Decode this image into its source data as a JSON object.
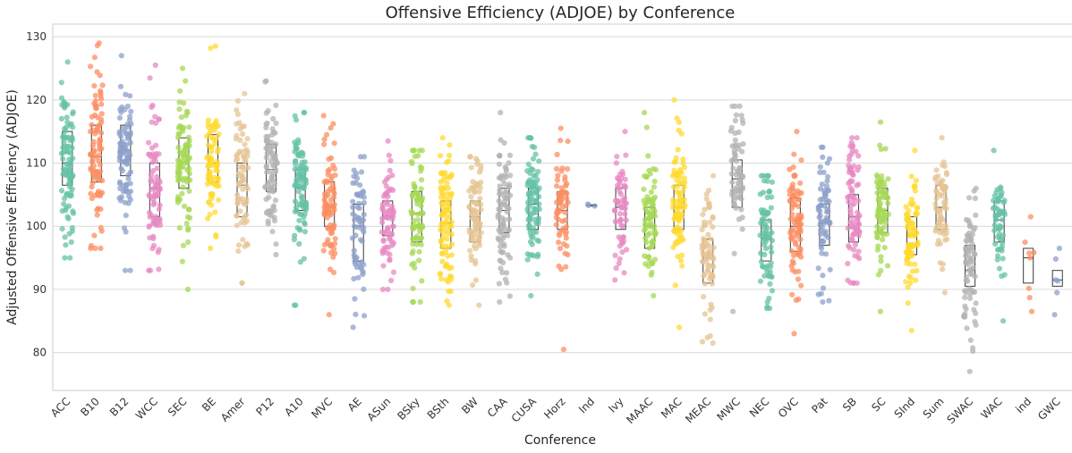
{
  "chart_data": {
    "type": "scatter",
    "title": "Offensive Efficiency (ADJOE) by Conference",
    "xlabel": "Conference",
    "ylabel": "Adjusted Offensive Efficiency (ADJOE)",
    "ylim": [
      74,
      132
    ],
    "yticks": [
      80,
      90,
      100,
      110,
      120,
      130
    ],
    "grid": true,
    "categories": [
      "ACC",
      "B10",
      "B12",
      "WCC",
      "SEC",
      "BE",
      "Amer",
      "P12",
      "A10",
      "MVC",
      "AE",
      "ASun",
      "BSky",
      "BSth",
      "BW",
      "CAA",
      "CUSA",
      "Horz",
      "Ind",
      "Ivy",
      "MAAC",
      "MAC",
      "MEAC",
      "MWC",
      "NEC",
      "OVC",
      "Pat",
      "SB",
      "SC",
      "SInd",
      "Sum",
      "SWAC",
      "WAC",
      "ind",
      "GWC"
    ],
    "colors": [
      "#66c2a5",
      "#fc8d62",
      "#8da0cb",
      "#e78ac3",
      "#a6d854",
      "#ffd92f",
      "#e5c494",
      "#b3b3b3"
    ],
    "series": [
      {
        "category": "ACC",
        "min": 95,
        "q1": 106.5,
        "median": 110,
        "q3": 115,
        "max": 126,
        "n": 95
      },
      {
        "category": "B10",
        "min": 96.5,
        "q1": 107,
        "median": 111,
        "q3": 116,
        "max": 129,
        "n": 95
      },
      {
        "category": "B12",
        "min": 93,
        "q1": 108,
        "median": 112,
        "q3": 116,
        "max": 127,
        "n": 90
      },
      {
        "category": "WCC",
        "min": 93,
        "q1": 101.5,
        "median": 106,
        "q3": 110,
        "max": 125.5,
        "n": 80
      },
      {
        "category": "SEC",
        "min": 90,
        "q1": 106,
        "median": 110,
        "q3": 114,
        "max": 125,
        "n": 90
      },
      {
        "category": "BE",
        "min": 96.5,
        "q1": 107,
        "median": 110,
        "q3": 114.5,
        "max": 128.5,
        "n": 80
      },
      {
        "category": "Amer",
        "min": 91,
        "q1": 101.5,
        "median": 106.5,
        "q3": 110,
        "max": 121,
        "n": 75
      },
      {
        "category": "P12",
        "min": 95.5,
        "q1": 105.5,
        "median": 109,
        "q3": 113,
        "max": 123,
        "n": 85
      },
      {
        "category": "A10",
        "min": 87.5,
        "q1": 102.5,
        "median": 106,
        "q3": 109,
        "max": 118,
        "n": 95
      },
      {
        "category": "MVC",
        "min": 86,
        "q1": 100,
        "median": 103,
        "q3": 107,
        "max": 117.5,
        "n": 80
      },
      {
        "category": "AE",
        "min": 84,
        "q1": 94.5,
        "median": 100,
        "q3": 103.5,
        "max": 111,
        "n": 65
      },
      {
        "category": "ASun",
        "min": 90,
        "q1": 98.5,
        "median": 101.5,
        "q3": 104,
        "max": 113.5,
        "n": 75
      },
      {
        "category": "BSky",
        "min": 88,
        "q1": 97.5,
        "median": 102,
        "q3": 105.5,
        "max": 112,
        "n": 75
      },
      {
        "category": "BSth",
        "min": 87.5,
        "q1": 96.5,
        "median": 100.5,
        "q3": 104,
        "max": 114,
        "n": 90
      },
      {
        "category": "BW",
        "min": 87.5,
        "q1": 97.5,
        "median": 101.5,
        "q3": 104,
        "max": 111,
        "n": 80
      },
      {
        "category": "CAA",
        "min": 88,
        "q1": 99,
        "median": 102.5,
        "q3": 106,
        "max": 118,
        "n": 85
      },
      {
        "category": "CUSA",
        "min": 89,
        "q1": 99.5,
        "median": 103.5,
        "q3": 106,
        "max": 114,
        "n": 90
      },
      {
        "category": "Horz",
        "min": 80.5,
        "q1": 99.5,
        "median": 102.5,
        "q3": 105.5,
        "max": 115.5,
        "n": 65
      },
      {
        "category": "Ind",
        "min": 103.2,
        "q1": 103.2,
        "median": 103.3,
        "q3": 103.4,
        "max": 103.5,
        "n": 3
      },
      {
        "category": "Ivy",
        "min": 91.5,
        "q1": 99.5,
        "median": 103,
        "q3": 106,
        "max": 115,
        "n": 60
      },
      {
        "category": "MAAC",
        "min": 89,
        "q1": 96.5,
        "median": 100,
        "q3": 103,
        "max": 118,
        "n": 75
      },
      {
        "category": "MAC",
        "min": 84,
        "q1": 99.5,
        "median": 103,
        "q3": 106.5,
        "max": 120,
        "n": 85
      },
      {
        "category": "MEAC",
        "min": 81.5,
        "q1": 91,
        "median": 95,
        "q3": 98,
        "max": 108,
        "n": 75
      },
      {
        "category": "MWC",
        "min": 86.5,
        "q1": 103,
        "median": 107.5,
        "q3": 110.5,
        "max": 119,
        "n": 70
      },
      {
        "category": "NEC",
        "min": 87,
        "q1": 94.5,
        "median": 98,
        "q3": 101,
        "max": 108,
        "n": 75
      },
      {
        "category": "OVC",
        "min": 83,
        "q1": 96,
        "median": 100,
        "q3": 104.5,
        "max": 115,
        "n": 85
      },
      {
        "category": "Pat",
        "min": 88,
        "q1": 97,
        "median": 100.5,
        "q3": 103.5,
        "max": 112.5,
        "n": 70
      },
      {
        "category": "SB",
        "min": 91,
        "q1": 97.5,
        "median": 101.5,
        "q3": 105,
        "max": 114,
        "n": 85
      },
      {
        "category": "SC",
        "min": 86.5,
        "q1": 99,
        "median": 102.5,
        "q3": 106,
        "max": 116.5,
        "n": 75
      },
      {
        "category": "SInd",
        "min": 83.5,
        "q1": 95.5,
        "median": 98.5,
        "q3": 101.5,
        "max": 112,
        "n": 80
      },
      {
        "category": "Sum",
        "min": 89.5,
        "q1": 99.5,
        "median": 103,
        "q3": 106.5,
        "max": 114,
        "n": 65
      },
      {
        "category": "SWAC",
        "min": 77,
        "q1": 90.5,
        "median": 93,
        "q3": 97,
        "max": 106,
        "n": 80
      },
      {
        "category": "WAC",
        "min": 85,
        "q1": 97.5,
        "median": 101,
        "q3": 104,
        "max": 112,
        "n": 60
      },
      {
        "category": "ind",
        "min": 86.5,
        "q1": 91,
        "median": 95,
        "q3": 96.5,
        "max": 101.5,
        "n": 8
      },
      {
        "category": "GWC",
        "min": 86,
        "q1": 90.5,
        "median": 91.5,
        "q3": 93,
        "max": 96.5,
        "n": 6
      }
    ]
  }
}
